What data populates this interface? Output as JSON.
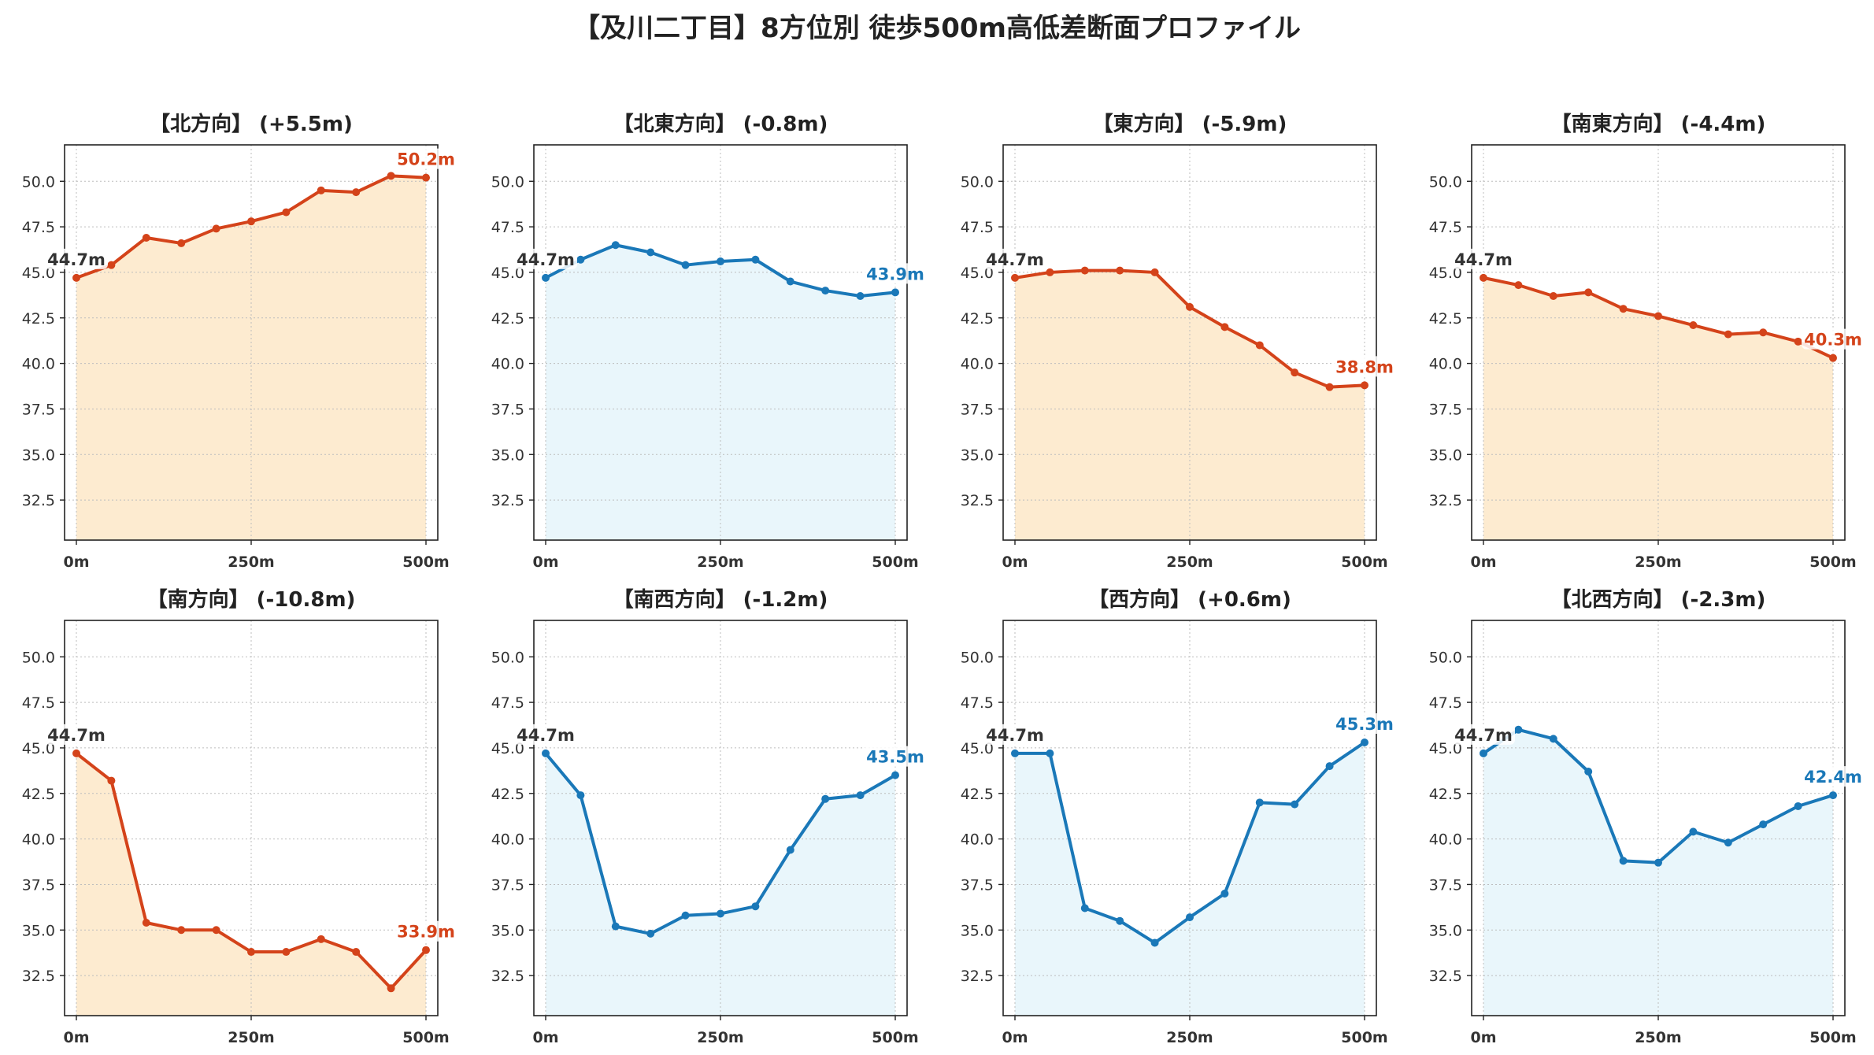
{
  "title": "【及川二丁目】8方位別 徒歩500m高低差断面プロファイル",
  "colors": {
    "up": "#d4431a",
    "down": "#1a78b8",
    "fill_up": "#fdebd0",
    "fill_down": "#e9f6fb",
    "start_label": "#333333"
  },
  "chart_data": [
    {
      "type": "area",
      "title": "【北方向】 (+5.5m)",
      "color": "up",
      "x": [
        0,
        50,
        100,
        150,
        200,
        250,
        300,
        350,
        400,
        450,
        500
      ],
      "y": [
        44.7,
        45.4,
        46.9,
        46.6,
        47.4,
        47.8,
        48.3,
        49.5,
        49.4,
        50.3,
        50.2
      ],
      "start_label": "44.7m",
      "end_label": "50.2m",
      "ylim": [
        30.3,
        52.0
      ],
      "yticks": [
        "32.5",
        "35.0",
        "37.5",
        "40.0",
        "42.5",
        "45.0",
        "47.5",
        "50.0"
      ],
      "xticks": [
        "0m",
        "250m",
        "500m"
      ],
      "grid": true
    },
    {
      "type": "area",
      "title": "【北東方向】 (-0.8m)",
      "color": "down",
      "x": [
        0,
        50,
        100,
        150,
        200,
        250,
        300,
        350,
        400,
        450,
        500
      ],
      "y": [
        44.7,
        45.7,
        46.5,
        46.1,
        45.4,
        45.6,
        45.7,
        44.5,
        44.0,
        43.7,
        43.9
      ],
      "start_label": "44.7m",
      "end_label": "43.9m",
      "ylim": [
        30.3,
        52.0
      ],
      "yticks": [
        "32.5",
        "35.0",
        "37.5",
        "40.0",
        "42.5",
        "45.0",
        "47.5",
        "50.0"
      ],
      "xticks": [
        "0m",
        "250m",
        "500m"
      ],
      "grid": true
    },
    {
      "type": "area",
      "title": "【東方向】 (-5.9m)",
      "color": "up",
      "x": [
        0,
        50,
        100,
        150,
        200,
        250,
        300,
        350,
        400,
        450,
        500
      ],
      "y": [
        44.7,
        45.0,
        45.1,
        45.1,
        45.0,
        43.1,
        42.0,
        41.0,
        39.5,
        38.7,
        38.8
      ],
      "start_label": "44.7m",
      "end_label": "38.8m",
      "ylim": [
        30.3,
        52.0
      ],
      "yticks": [
        "32.5",
        "35.0",
        "37.5",
        "40.0",
        "42.5",
        "45.0",
        "47.5",
        "50.0"
      ],
      "xticks": [
        "0m",
        "250m",
        "500m"
      ],
      "grid": true
    },
    {
      "type": "area",
      "title": "【南東方向】 (-4.4m)",
      "color": "up",
      "x": [
        0,
        50,
        100,
        150,
        200,
        250,
        300,
        350,
        400,
        450,
        500
      ],
      "y": [
        44.7,
        44.3,
        43.7,
        43.9,
        43.0,
        42.6,
        42.1,
        41.6,
        41.7,
        41.2,
        40.3
      ],
      "start_label": "44.7m",
      "end_label": "40.3m",
      "ylim": [
        30.3,
        52.0
      ],
      "yticks": [
        "32.5",
        "35.0",
        "37.5",
        "40.0",
        "42.5",
        "45.0",
        "47.5",
        "50.0"
      ],
      "xticks": [
        "0m",
        "250m",
        "500m"
      ],
      "grid": true
    },
    {
      "type": "area",
      "title": "【南方向】 (-10.8m)",
      "color": "up",
      "x": [
        0,
        50,
        100,
        150,
        200,
        250,
        300,
        350,
        400,
        450,
        500
      ],
      "y": [
        44.7,
        43.2,
        35.4,
        35.0,
        35.0,
        33.8,
        33.8,
        34.5,
        33.8,
        31.8,
        33.9
      ],
      "start_label": "44.7m",
      "end_label": "33.9m",
      "ylim": [
        30.3,
        52.0
      ],
      "yticks": [
        "32.5",
        "35.0",
        "37.5",
        "40.0",
        "42.5",
        "45.0",
        "47.5",
        "50.0"
      ],
      "xticks": [
        "0m",
        "250m",
        "500m"
      ],
      "grid": true
    },
    {
      "type": "area",
      "title": "【南西方向】 (-1.2m)",
      "color": "down",
      "x": [
        0,
        50,
        100,
        150,
        200,
        250,
        300,
        350,
        400,
        450,
        500
      ],
      "y": [
        44.7,
        42.4,
        35.2,
        34.8,
        35.8,
        35.9,
        36.3,
        39.4,
        42.2,
        42.4,
        43.5
      ],
      "start_label": "44.7m",
      "end_label": "43.5m",
      "ylim": [
        30.3,
        52.0
      ],
      "yticks": [
        "32.5",
        "35.0",
        "37.5",
        "40.0",
        "42.5",
        "45.0",
        "47.5",
        "50.0"
      ],
      "xticks": [
        "0m",
        "250m",
        "500m"
      ],
      "grid": true
    },
    {
      "type": "area",
      "title": "【西方向】 (+0.6m)",
      "color": "down",
      "x": [
        0,
        50,
        100,
        150,
        200,
        250,
        300,
        350,
        400,
        450,
        500
      ],
      "y": [
        44.7,
        44.7,
        36.2,
        35.5,
        34.3,
        35.7,
        37.0,
        42.0,
        41.9,
        44.0,
        45.3
      ],
      "start_label": "44.7m",
      "end_label": "45.3m",
      "ylim": [
        30.3,
        52.0
      ],
      "yticks": [
        "32.5",
        "35.0",
        "37.5",
        "40.0",
        "42.5",
        "45.0",
        "47.5",
        "50.0"
      ],
      "xticks": [
        "0m",
        "250m",
        "500m"
      ],
      "grid": true
    },
    {
      "type": "area",
      "title": "【北西方向】 (-2.3m)",
      "color": "down",
      "x": [
        0,
        50,
        100,
        150,
        200,
        250,
        300,
        350,
        400,
        450,
        500
      ],
      "y": [
        44.7,
        46.0,
        45.5,
        43.7,
        38.8,
        38.7,
        40.4,
        39.8,
        40.8,
        41.8,
        42.4
      ],
      "start_label": "44.7m",
      "end_label": "42.4m",
      "ylim": [
        30.3,
        52.0
      ],
      "yticks": [
        "32.5",
        "35.0",
        "37.5",
        "40.0",
        "42.5",
        "45.0",
        "47.5",
        "50.0"
      ],
      "xticks": [
        "0m",
        "250m",
        "500m"
      ],
      "grid": true
    }
  ]
}
